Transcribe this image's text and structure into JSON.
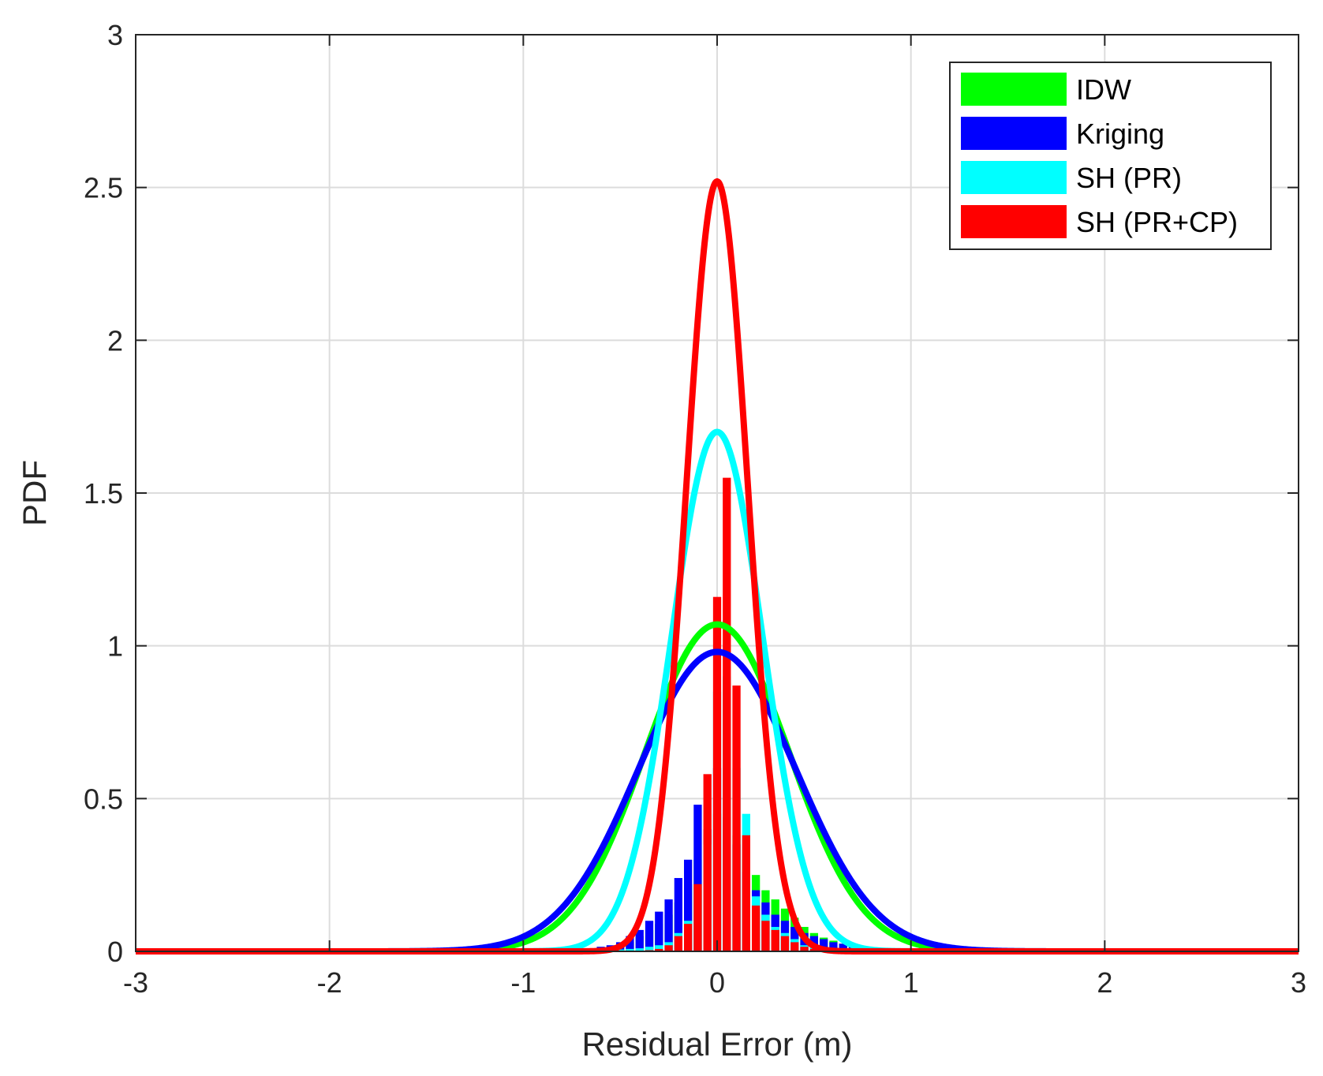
{
  "chart_data": {
    "type": "line",
    "title": "",
    "xlabel": "Residual Error (m)",
    "ylabel": "PDF",
    "xlim": [
      -3,
      3
    ],
    "ylim": [
      0,
      3
    ],
    "xticks": [
      -3,
      -2,
      -1,
      0,
      1,
      2,
      3
    ],
    "xtick_labels": [
      "-3",
      "-2",
      "-1",
      "0",
      "1",
      "2",
      "3"
    ],
    "yticks": [
      0,
      0.5,
      1,
      1.5,
      2,
      2.5,
      3
    ],
    "ytick_labels": [
      "0",
      "0.5",
      "1",
      "1.5",
      "2",
      "2.5",
      "3"
    ],
    "grid": true,
    "legend_position": "top-right",
    "series": [
      {
        "name": "IDW",
        "color": "#00ff00",
        "curve": {
          "kind": "gaussian",
          "mean": 0,
          "peak": 1.07
        }
      },
      {
        "name": "Kriging",
        "color": "#0000ff",
        "curve": {
          "kind": "gaussian",
          "mean": 0,
          "peak": 0.98
        }
      },
      {
        "name": "SH (PR)",
        "color": "#00ffff",
        "curve": {
          "kind": "gaussian",
          "mean": 0,
          "peak": 1.7
        }
      },
      {
        "name": "SH (PR+CP)",
        "color": "#ff0000",
        "curve": {
          "kind": "gaussian",
          "mean": 0,
          "peak": 2.52
        }
      }
    ],
    "histograms": {
      "bin_width": 0.05,
      "bins": [
        {
          "x": -0.6,
          "values": [
            0.01,
            0.015,
            0.004,
            0.0
          ]
        },
        {
          "x": -0.55,
          "values": [
            0.015,
            0.02,
            0.005,
            0.0
          ]
        },
        {
          "x": -0.5,
          "values": [
            0.02,
            0.03,
            0.006,
            0.0
          ]
        },
        {
          "x": -0.45,
          "values": [
            0.03,
            0.05,
            0.008,
            0.001
          ]
        },
        {
          "x": -0.4,
          "values": [
            0.05,
            0.07,
            0.01,
            0.002
          ]
        },
        {
          "x": -0.35,
          "values": [
            0.07,
            0.1,
            0.015,
            0.004
          ]
        },
        {
          "x": -0.3,
          "values": [
            0.09,
            0.13,
            0.02,
            0.008
          ]
        },
        {
          "x": -0.25,
          "values": [
            0.12,
            0.17,
            0.03,
            0.02
          ]
        },
        {
          "x": -0.2,
          "values": [
            0.16,
            0.24,
            0.06,
            0.05
          ]
        },
        {
          "x": -0.15,
          "values": [
            0.22,
            0.3,
            0.1,
            0.09
          ]
        },
        {
          "x": -0.1,
          "values": [
            0.3,
            0.48,
            0.2,
            0.22
          ]
        },
        {
          "x": -0.05,
          "values": [
            0.38,
            0.4,
            0.35,
            0.58
          ]
        },
        {
          "x": 0.0,
          "values": [
            0.45,
            0.6,
            0.85,
            1.16
          ]
        },
        {
          "x": 0.05,
          "values": [
            0.4,
            0.44,
            0.9,
            1.55
          ]
        },
        {
          "x": 0.1,
          "values": [
            0.38,
            0.35,
            0.6,
            0.87
          ]
        },
        {
          "x": 0.15,
          "values": [
            0.3,
            0.26,
            0.45,
            0.38
          ]
        },
        {
          "x": 0.2,
          "values": [
            0.25,
            0.2,
            0.18,
            0.15
          ]
        },
        {
          "x": 0.25,
          "values": [
            0.2,
            0.16,
            0.12,
            0.1
          ]
        },
        {
          "x": 0.3,
          "values": [
            0.17,
            0.12,
            0.08,
            0.07
          ]
        },
        {
          "x": 0.35,
          "values": [
            0.14,
            0.1,
            0.06,
            0.05
          ]
        },
        {
          "x": 0.4,
          "values": [
            0.11,
            0.08,
            0.04,
            0.03
          ]
        },
        {
          "x": 0.45,
          "values": [
            0.08,
            0.06,
            0.02,
            0.015
          ]
        },
        {
          "x": 0.5,
          "values": [
            0.06,
            0.05,
            0.015,
            0.008
          ]
        },
        {
          "x": 0.55,
          "values": [
            0.045,
            0.04,
            0.01,
            0.004
          ]
        },
        {
          "x": 0.6,
          "values": [
            0.035,
            0.03,
            0.008,
            0.002
          ]
        },
        {
          "x": 0.65,
          "values": [
            0.025,
            0.025,
            0.006,
            0.001
          ]
        },
        {
          "x": 0.7,
          "values": [
            0.02,
            0.02,
            0.004,
            0.0
          ]
        },
        {
          "x": 0.75,
          "values": [
            0.015,
            0.015,
            0.003,
            0.0
          ]
        },
        {
          "x": 0.8,
          "values": [
            0.01,
            0.012,
            0.002,
            0.0
          ]
        },
        {
          "x": 0.85,
          "values": [
            0.008,
            0.01,
            0.001,
            0.0
          ]
        },
        {
          "x": 0.9,
          "values": [
            0.006,
            0.008,
            0.001,
            0.0
          ]
        },
        {
          "x": 0.95,
          "values": [
            0.004,
            0.006,
            0.0,
            0.0
          ]
        },
        {
          "x": 1.0,
          "values": [
            0.003,
            0.004,
            0.0,
            0.0
          ]
        }
      ]
    }
  }
}
